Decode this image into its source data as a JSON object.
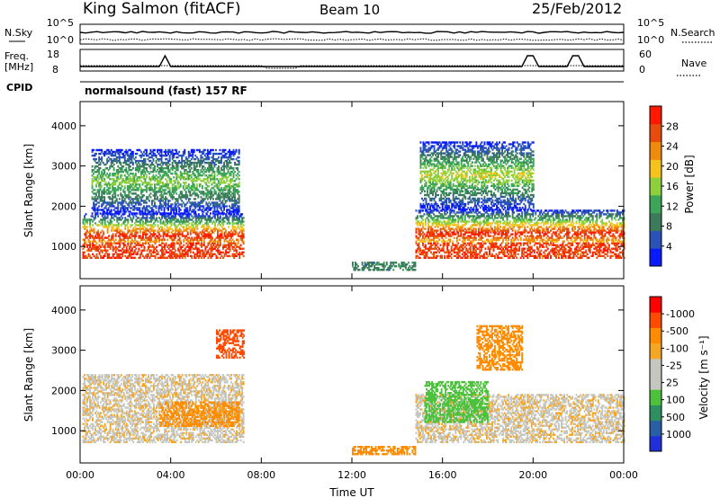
{
  "header": {
    "station": "King Salmon (fitACF)",
    "beam": "Beam 10",
    "date": "25/Feb/2012"
  },
  "noise_panel": {
    "left_label": "N.Sky",
    "right_label": "N.Search",
    "ticks_left": [
      "10^5",
      "10^0"
    ],
    "ticks_right": [
      "10^5",
      "10^0"
    ]
  },
  "freq_panel": {
    "left_label_top": "Freq.",
    "left_label_bottom": "[MHz]",
    "right_label": "Nave",
    "ticks_left": [
      "18",
      "8"
    ],
    "ticks_right": [
      "60",
      "0"
    ]
  },
  "cpid_panel": {
    "label": "CPID",
    "text": "normalsound (fast) 157 RF"
  },
  "colors": {
    "power_scale": [
      "#0a1aff",
      "#2a52b8",
      "#3c7a5c",
      "#3da55a",
      "#8ecf3c",
      "#f6c31c",
      "#f08a0c",
      "#e84c0c",
      "#ff1800"
    ],
    "velocity_scale": [
      "#ff0000",
      "#ff4a00",
      "#ff8c00",
      "#f5a623",
      "#c6c6c0",
      "#c6c6c0",
      "#4cc23c",
      "#2e9060",
      "#2a5fa8",
      "#2030d8"
    ],
    "ground_scatter": "#c6c6c0"
  },
  "chart_data": [
    {
      "type": "heatmap",
      "name": "power",
      "xlabel": "",
      "ylabel": "Slant Range [km]",
      "x_ticks": [
        "00:00",
        "04:00",
        "08:00",
        "12:00",
        "16:00",
        "20:00",
        "00:00"
      ],
      "y_ticks": [
        "1000",
        "2000",
        "3000",
        "4000"
      ],
      "xlim_hours": [
        0,
        24
      ],
      "ylim_km": [
        200,
        4600
      ],
      "colorbar": {
        "label": "Power [dB]",
        "ticks": [
          "4",
          "8",
          "12",
          "16",
          "20",
          "24",
          "28"
        ],
        "range": [
          0,
          32
        ]
      },
      "echo_regions": [
        {
          "t0": 0.1,
          "t1": 7.2,
          "r0": 700,
          "r1": 1800,
          "peak_db": 28
        },
        {
          "t0": 0.5,
          "t1": 7.0,
          "r0": 1800,
          "r1": 3400,
          "peak_db": 14
        },
        {
          "t0": 12.0,
          "t1": 14.8,
          "r0": 400,
          "r1": 600,
          "peak_db": 8
        },
        {
          "t0": 14.8,
          "t1": 24.0,
          "r0": 700,
          "r1": 1900,
          "peak_db": 28
        },
        {
          "t0": 15.0,
          "t1": 20.0,
          "r0": 1900,
          "r1": 3600,
          "peak_db": 16
        }
      ]
    },
    {
      "type": "heatmap",
      "name": "velocity",
      "xlabel": "Time UT",
      "ylabel": "Slant Range [km]",
      "x_ticks": [
        "00:00",
        "04:00",
        "08:00",
        "12:00",
        "16:00",
        "20:00",
        "00:00"
      ],
      "y_ticks": [
        "1000",
        "2000",
        "3000",
        "4000"
      ],
      "xlim_hours": [
        0,
        24
      ],
      "ylim_km": [
        200,
        4600
      ],
      "colorbar": {
        "label": "Velocity [m s⁻¹]",
        "ticks": [
          "1000",
          "500",
          "100",
          "25",
          "-25",
          "-100",
          "-500",
          "-1000"
        ],
        "range": [
          -1000,
          1000
        ]
      },
      "echo_regions": [
        {
          "t0": 0.1,
          "t1": 7.2,
          "r0": 700,
          "r1": 2400,
          "velocity": 0
        },
        {
          "t0": 3.5,
          "t1": 7.0,
          "r0": 1100,
          "r1": 1700,
          "velocity": -150
        },
        {
          "t0": 6.0,
          "t1": 7.2,
          "r0": 2800,
          "r1": 3500,
          "velocity": -600
        },
        {
          "t0": 12.0,
          "t1": 14.8,
          "r0": 400,
          "r1": 600,
          "velocity": -300
        },
        {
          "t0": 14.8,
          "t1": 24.0,
          "r0": 700,
          "r1": 1900,
          "velocity": 0
        },
        {
          "t0": 15.2,
          "t1": 18.0,
          "r0": 1200,
          "r1": 2200,
          "velocity": 300
        },
        {
          "t0": 17.5,
          "t1": 19.5,
          "r0": 2500,
          "r1": 3600,
          "velocity": -400
        }
      ]
    }
  ]
}
